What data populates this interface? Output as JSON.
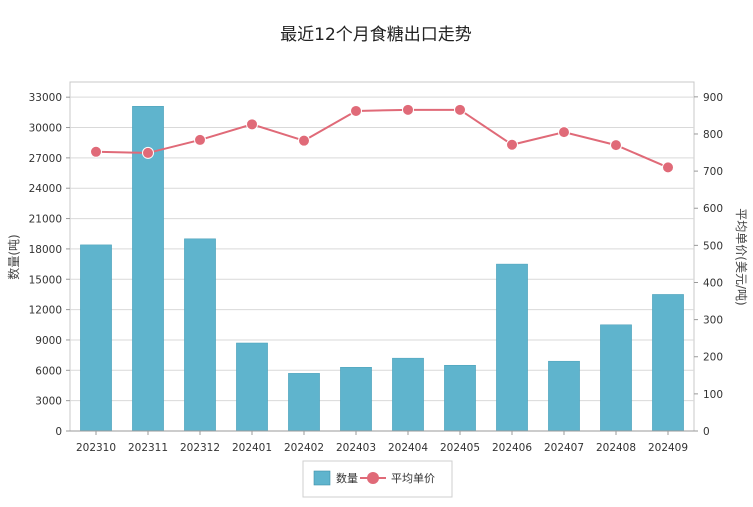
{
  "chart_data": {
    "type": "bar",
    "title": "最近12个月食糖出口走势",
    "categories": [
      "202310",
      "202311",
      "202312",
      "202401",
      "202402",
      "202403",
      "202404",
      "202405",
      "202406",
      "202407",
      "202408",
      "202409"
    ],
    "series": [
      {
        "name": "数量",
        "type": "bar",
        "axis": "left",
        "color": "#5FB4CD",
        "values": [
          18400,
          32100,
          19000,
          8700,
          5700,
          6300,
          7200,
          6500,
          16500,
          6900,
          10500,
          13500
        ]
      },
      {
        "name": "平均单价",
        "type": "line",
        "axis": "right",
        "color": "#E06A78",
        "values": [
          752,
          749,
          784,
          826,
          782,
          862,
          865,
          865,
          771,
          805,
          770,
          710
        ]
      }
    ],
    "y_left": {
      "label": "数量(吨)",
      "ylim": [
        0,
        34500
      ],
      "ticks": [
        0,
        3000,
        6000,
        9000,
        12000,
        15000,
        18000,
        21000,
        24000,
        27000,
        30000,
        33000
      ]
    },
    "y_right": {
      "label": "平均单价(美元/吨)",
      "ylim": [
        0,
        940
      ],
      "ticks": [
        0,
        100,
        200,
        300,
        400,
        500,
        600,
        700,
        800,
        900
      ]
    },
    "grid": true,
    "legend": "bottom-center"
  }
}
